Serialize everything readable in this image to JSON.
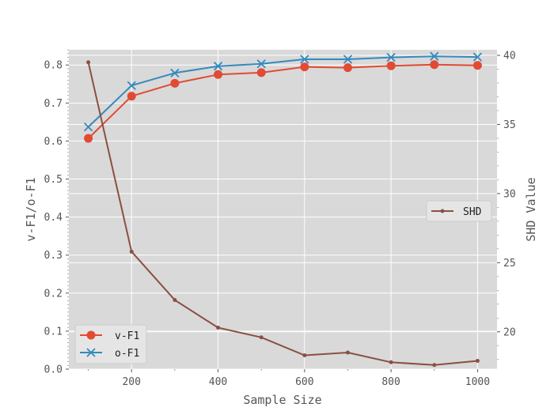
{
  "chart_data": {
    "type": "line",
    "x": [
      100,
      200,
      300,
      400,
      500,
      600,
      700,
      800,
      900,
      1000
    ],
    "xlabel": "Sample Size",
    "ylabel_left": "v-F1/o-F1",
    "ylabel_right": "SHD Value",
    "xlim": [
      55,
      1045
    ],
    "xticks": [
      200,
      400,
      600,
      800,
      1000
    ],
    "ylim_left": [
      0.0,
      0.84
    ],
    "yticks_left": [
      0.0,
      0.1,
      0.2,
      0.3,
      0.4,
      0.5,
      0.6,
      0.7,
      0.8
    ],
    "ylim_right": [
      17.3,
      40.4
    ],
    "yticks_right": [
      20,
      25,
      30,
      35,
      40
    ],
    "grid": true,
    "series": [
      {
        "name": "v-F1",
        "axis": "left",
        "marker": "circle",
        "color": "#E24A33",
        "values": [
          0.607,
          0.718,
          0.752,
          0.775,
          0.78,
          0.795,
          0.793,
          0.798,
          0.801,
          0.799
        ]
      },
      {
        "name": "o-F1",
        "axis": "left",
        "marker": "x",
        "color": "#348ABD",
        "values": [
          0.637,
          0.746,
          0.779,
          0.797,
          0.803,
          0.815,
          0.815,
          0.82,
          0.823,
          0.821
        ]
      },
      {
        "name": "SHD",
        "axis": "right",
        "marker": "dot",
        "color": "#8B4F43",
        "values": [
          39.5,
          25.8,
          22.3,
          20.3,
          19.6,
          18.3,
          18.5,
          17.8,
          17.6,
          17.9
        ]
      }
    ],
    "legends": [
      {
        "placement": "lower-left",
        "entries": [
          "v-F1",
          "o-F1"
        ]
      },
      {
        "placement": "center-right",
        "entries": [
          "SHD"
        ]
      }
    ]
  }
}
